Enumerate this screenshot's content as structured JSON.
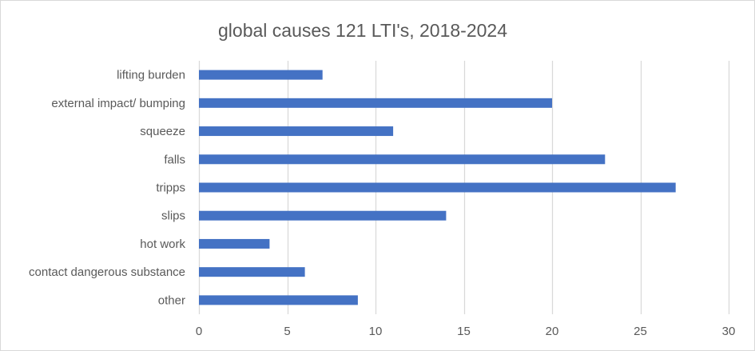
{
  "chart_data": {
    "type": "bar",
    "orientation": "horizontal",
    "title": "global causes 121 LTI's, 2018-2024",
    "xlabel": "",
    "ylabel": "",
    "categories": [
      "lifting burden",
      "external impact/ bumping",
      "squeeze",
      "falls",
      "tripps",
      "slips",
      "hot work",
      "contact dangerous substance",
      "other"
    ],
    "values": [
      7,
      20,
      11,
      23,
      27,
      14,
      4,
      6,
      9
    ],
    "xlim": [
      0,
      30
    ],
    "xticks": [
      0,
      5,
      10,
      15,
      20,
      25,
      30
    ],
    "grid": true,
    "legend": "none",
    "bar_color": "#4472c4",
    "grid_color": "#d9d9d9"
  }
}
